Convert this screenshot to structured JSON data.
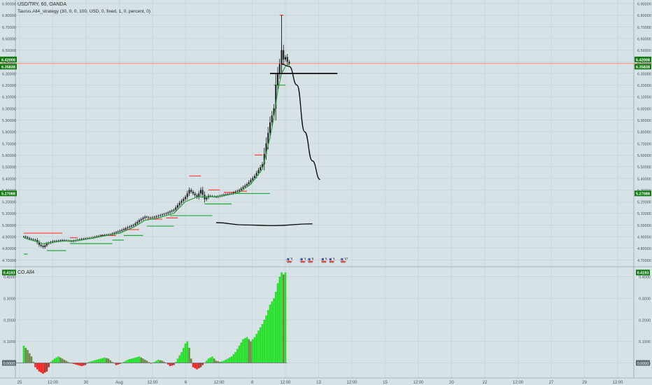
{
  "header": {
    "symbol_line": "USD/TRY, 60, OANDA",
    "strategy_line": "Taurus.All4_strategy (30, 0, 0, 100, USD, 0, fixed, 1, 0, percent, 0)"
  },
  "colors": {
    "background": "#d6e2e6",
    "grid": "#c6d3d8",
    "candle": "#1a1a1a",
    "ma": "#2ea043",
    "resistance": "#ff3b3b",
    "support": "#22a83a",
    "last_price_line": "#ff7a45",
    "label_green": "#137a13",
    "hist_pos": "#27e02a",
    "hist_pos_dark": "#6e8a4b",
    "hist_neg": "#ff2020",
    "hist_neg_dark": "#a83a3a",
    "forecast": "#000000"
  },
  "chart_data": [
    {
      "type": "candlestick",
      "title": "USD/TRY, 60, OANDA",
      "y_ticks": [
        "6.90000",
        "6.80000",
        "6.70000",
        "6.60000",
        "6.50000",
        "6.40000",
        "6.30000",
        "6.20000",
        "6.10000",
        "6.00000",
        "5.90000",
        "5.80000",
        "5.70000",
        "5.60000",
        "5.50000",
        "5.40000",
        "5.30000",
        "5.20000",
        "5.10000",
        "5.00000",
        "4.90000",
        "4.80000",
        "4.70000"
      ],
      "ylim": [
        4.66,
        6.93
      ],
      "x_ticks": [
        "25",
        "12:00",
        "30",
        "Aug",
        "12:00",
        "6",
        "12:00",
        "8",
        "12:00",
        "13",
        "12:00",
        "15",
        "12:00",
        "20",
        "22",
        "12:00",
        "27",
        "29",
        "12:00"
      ],
      "price_labels": [
        {
          "text": "6.42008",
          "value": 6.42008
        },
        {
          "text": "6.35838",
          "value": 6.35838
        },
        {
          "text": "5.27088",
          "value": 5.27088
        }
      ],
      "last_price": 6.385,
      "close_path": [
        [
          0,
          4.9
        ],
        [
          3,
          4.88
        ],
        [
          6,
          4.87
        ],
        [
          8,
          4.83
        ],
        [
          10,
          4.81
        ],
        [
          12,
          4.84
        ],
        [
          15,
          4.86
        ],
        [
          20,
          4.87
        ],
        [
          25,
          4.86
        ],
        [
          30,
          4.88
        ],
        [
          35,
          4.89
        ],
        [
          40,
          4.91
        ],
        [
          45,
          4.92
        ],
        [
          50,
          4.95
        ],
        [
          54,
          4.98
        ],
        [
          57,
          5.0
        ],
        [
          60,
          5.04
        ],
        [
          63,
          5.07
        ],
        [
          66,
          5.06
        ],
        [
          70,
          5.08
        ],
        [
          74,
          5.1
        ],
        [
          78,
          5.13
        ],
        [
          81,
          5.19
        ],
        [
          84,
          5.24
        ],
        [
          86,
          5.3
        ],
        [
          88,
          5.27
        ],
        [
          90,
          5.24
        ],
        [
          92,
          5.3
        ],
        [
          94,
          5.22
        ],
        [
          96,
          5.25
        ],
        [
          100,
          5.24
        ],
        [
          104,
          5.26
        ],
        [
          108,
          5.27
        ],
        [
          112,
          5.3
        ],
        [
          116,
          5.35
        ],
        [
          120,
          5.42
        ],
        [
          124,
          5.52
        ],
        [
          126,
          5.7
        ],
        [
          128,
          5.88
        ],
        [
          130,
          6.0
        ],
        [
          131,
          6.2
        ],
        [
          132,
          6.3
        ],
        [
          133,
          6.38
        ],
        [
          134,
          6.5
        ],
        [
          135,
          6.42
        ],
        [
          136,
          6.44
        ],
        [
          137,
          6.4
        ],
        [
          138,
          6.385
        ]
      ],
      "high_spike": {
        "x": 134,
        "high": 6.8,
        "low": 6.3
      },
      "ma_path": [
        [
          0,
          4.89
        ],
        [
          10,
          4.84
        ],
        [
          20,
          4.86
        ],
        [
          30,
          4.87
        ],
        [
          40,
          4.9
        ],
        [
          50,
          4.93
        ],
        [
          57,
          4.98
        ],
        [
          63,
          5.04
        ],
        [
          70,
          5.06
        ],
        [
          78,
          5.1
        ],
        [
          84,
          5.2
        ],
        [
          90,
          5.24
        ],
        [
          96,
          5.24
        ],
        [
          104,
          5.25
        ],
        [
          112,
          5.28
        ],
        [
          118,
          5.35
        ],
        [
          124,
          5.48
        ],
        [
          128,
          5.75
        ],
        [
          130,
          5.92
        ],
        [
          132,
          6.15
        ],
        [
          134,
          6.3
        ],
        [
          136,
          6.36
        ],
        [
          138,
          6.38
        ]
      ],
      "resistance_levels": [
        {
          "x0": 0,
          "x1": 20,
          "y": 4.93
        },
        {
          "x0": 24,
          "x1": 28,
          "y": 4.89
        },
        {
          "x0": 40,
          "x1": 48,
          "y": 4.91
        },
        {
          "x0": 52,
          "x1": 60,
          "y": 4.96
        },
        {
          "x0": 64,
          "x1": 72,
          "y": 5.05
        },
        {
          "x0": 74,
          "x1": 80,
          "y": 5.06
        },
        {
          "x0": 86,
          "x1": 92,
          "y": 5.42
        },
        {
          "x0": 96,
          "x1": 102,
          "y": 5.3
        },
        {
          "x0": 104,
          "x1": 110,
          "y": 5.28
        },
        {
          "x0": 112,
          "x1": 116,
          "y": 5.29
        },
        {
          "x0": 120,
          "x1": 124,
          "y": 5.6
        },
        {
          "x0": 128,
          "x1": 132,
          "y": 6.3
        },
        {
          "x0": 133,
          "x1": 135,
          "y": 6.8
        }
      ],
      "support_levels": [
        {
          "x0": 0,
          "x1": 2,
          "y": 4.75
        },
        {
          "x0": 12,
          "x1": 22,
          "y": 4.78
        },
        {
          "x0": 24,
          "x1": 46,
          "y": 4.84
        },
        {
          "x0": 46,
          "x1": 52,
          "y": 4.87
        },
        {
          "x0": 52,
          "x1": 62,
          "y": 4.91
        },
        {
          "x0": 64,
          "x1": 78,
          "y": 4.99
        },
        {
          "x0": 76,
          "x1": 98,
          "y": 5.08
        },
        {
          "x0": 94,
          "x1": 108,
          "y": 5.18
        },
        {
          "x0": 110,
          "x1": 128,
          "y": 5.27
        },
        {
          "x0": 130,
          "x1": 136,
          "y": 6.2
        }
      ],
      "forecast": {
        "horizontal_level": {
          "x0": 128,
          "x1": 163,
          "y": 6.3
        },
        "curve": [
          [
            134,
            6.38
          ],
          [
            138,
            6.36
          ],
          [
            142,
            6.2
          ],
          [
            146,
            5.8
          ],
          [
            150,
            5.55
          ],
          [
            154,
            5.39
          ]
        ],
        "lower_curve": [
          [
            100,
            5.02
          ],
          [
            115,
            5.0
          ],
          [
            130,
            4.995
          ],
          [
            150,
            5.01
          ]
        ]
      },
      "event_markers": [
        {
          "x": 138,
          "count": "3"
        },
        {
          "x": 145,
          "count": "4"
        },
        {
          "x": 149,
          "count": "8"
        },
        {
          "x": 156,
          "count": "5"
        },
        {
          "x": 160,
          "count": "4"
        },
        {
          "x": 166,
          "count": "27"
        }
      ]
    },
    {
      "type": "histogram",
      "title": "CO.All4",
      "y_ticks": [
        "0.4000",
        "0.3000",
        "0.2000",
        "0.1000",
        "0.0000"
      ],
      "ylim": [
        -0.07,
        0.43
      ],
      "value_label": "0.4193",
      "zero_label": "0.0000",
      "values_path": [
        [
          0,
          0.08
        ],
        [
          2,
          0.06
        ],
        [
          4,
          0.03
        ],
        [
          5,
          0.005
        ],
        [
          6,
          -0.02
        ],
        [
          8,
          -0.04
        ],
        [
          10,
          -0.05
        ],
        [
          12,
          -0.04
        ],
        [
          13,
          -0.02
        ],
        [
          14,
          0.005
        ],
        [
          16,
          0.02
        ],
        [
          18,
          0.03
        ],
        [
          20,
          0.02
        ],
        [
          22,
          0.01
        ],
        [
          24,
          0.0
        ],
        [
          26,
          -0.005
        ],
        [
          28,
          -0.01
        ],
        [
          30,
          -0.015
        ],
        [
          32,
          -0.01
        ],
        [
          34,
          0.005
        ],
        [
          36,
          0.01
        ],
        [
          38,
          0.015
        ],
        [
          40,
          0.02
        ],
        [
          42,
          0.025
        ],
        [
          44,
          0.02
        ],
        [
          46,
          0.005
        ],
        [
          48,
          -0.01
        ],
        [
          50,
          -0.005
        ],
        [
          52,
          0.005
        ],
        [
          54,
          0.015
        ],
        [
          56,
          0.02
        ],
        [
          58,
          0.025
        ],
        [
          60,
          0.03
        ],
        [
          62,
          0.02
        ],
        [
          64,
          0.01
        ],
        [
          66,
          -0.003
        ],
        [
          68,
          0.005
        ],
        [
          70,
          0.015
        ],
        [
          72,
          0.01
        ],
        [
          74,
          0.0
        ],
        [
          76,
          -0.015
        ],
        [
          78,
          -0.01
        ],
        [
          80,
          0.02
        ],
        [
          82,
          0.05
        ],
        [
          84,
          0.09
        ],
        [
          85,
          0.1
        ],
        [
          86,
          0.07
        ],
        [
          87,
          0.02
        ],
        [
          88,
          -0.02
        ],
        [
          90,
          -0.03
        ],
        [
          92,
          -0.02
        ],
        [
          94,
          0.0
        ],
        [
          96,
          0.02
        ],
        [
          98,
          0.03
        ],
        [
          100,
          0.01
        ],
        [
          102,
          0.005
        ],
        [
          104,
          0.01
        ],
        [
          106,
          0.02
        ],
        [
          108,
          0.03
        ],
        [
          110,
          0.05
        ],
        [
          112,
          0.08
        ],
        [
          114,
          0.11
        ],
        [
          116,
          0.12
        ],
        [
          118,
          0.1
        ],
        [
          120,
          0.12
        ],
        [
          122,
          0.15
        ],
        [
          124,
          0.18
        ],
        [
          126,
          0.22
        ],
        [
          128,
          0.27
        ],
        [
          130,
          0.3
        ],
        [
          131,
          0.33
        ],
        [
          132,
          0.37
        ],
        [
          133,
          0.4
        ],
        [
          134,
          0.42
        ],
        [
          135,
          0.41
        ],
        [
          136,
          0.42
        ]
      ]
    }
  ]
}
